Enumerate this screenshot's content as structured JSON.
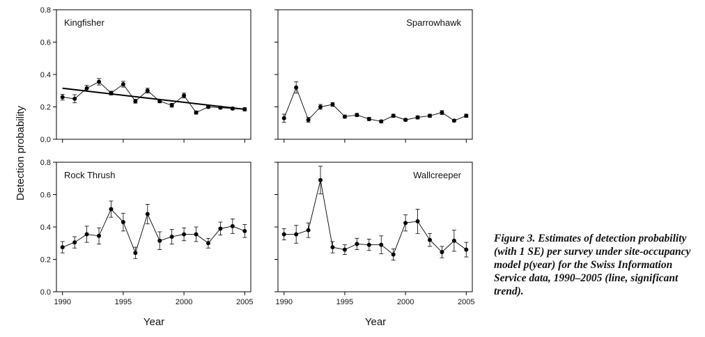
{
  "figure": {
    "caption": "Figure 3.  Estimates of detection probability (with 1 SE) per survey under site-occupancy model p(year) for the Swiss Information Service data, 1990–2005 (line, significant trend)."
  },
  "chart_data": [
    {
      "type": "line",
      "title": "Kingfisher",
      "xlabel": "",
      "ylabel": "Detection probability",
      "x": [
        1990,
        1991,
        1992,
        1993,
        1994,
        1995,
        1996,
        1997,
        1998,
        1999,
        2000,
        2001,
        2002,
        2003,
        2004,
        2005
      ],
      "values": [
        0.26,
        0.25,
        0.315,
        0.355,
        0.285,
        0.34,
        0.235,
        0.3,
        0.235,
        0.21,
        0.27,
        0.165,
        0.2,
        0.195,
        0.19,
        0.185
      ],
      "se": [
        0.018,
        0.025,
        0.018,
        0.02,
        0.012,
        0.018,
        0.012,
        0.015,
        0.01,
        0.012,
        0.015,
        0.01,
        0.008,
        0.008,
        0.008,
        0.01
      ],
      "trend": [
        [
          1990,
          0.315
        ],
        [
          2005,
          0.185
        ]
      ],
      "xlim": [
        1989.5,
        2005.5
      ],
      "ylim": [
        0,
        0.8
      ],
      "xticks": [
        "",
        "",
        "",
        "",
        ""
      ],
      "yticks": [
        "0.0",
        "0.2",
        "0.4",
        "0.6",
        "0.8"
      ],
      "title_align": "left"
    },
    {
      "type": "line",
      "title": "Sparrowhawk",
      "xlabel": "",
      "ylabel": "",
      "x": [
        1990,
        1991,
        1992,
        1993,
        1994,
        1995,
        1996,
        1997,
        1998,
        1999,
        2000,
        2001,
        2002,
        2003,
        2004,
        2005
      ],
      "values": [
        0.13,
        0.32,
        0.12,
        0.2,
        0.215,
        0.14,
        0.15,
        0.125,
        0.11,
        0.145,
        0.12,
        0.135,
        0.145,
        0.165,
        0.115,
        0.145
      ],
      "se": [
        0.025,
        0.035,
        0.015,
        0.015,
        0.012,
        0.01,
        0.01,
        0.01,
        0.008,
        0.01,
        0.008,
        0.01,
        0.01,
        0.012,
        0.008,
        0.01
      ],
      "trend": null,
      "xlim": [
        1989.5,
        2005.5
      ],
      "ylim": [
        0,
        0.8
      ],
      "xticks": [
        "",
        "",
        "",
        "",
        ""
      ],
      "yticks": [
        "",
        "",
        "",
        "",
        ""
      ],
      "title_align": "right"
    },
    {
      "type": "line",
      "title": "Rock Thrush",
      "xlabel": "Year",
      "ylabel": "",
      "x": [
        1990,
        1991,
        1992,
        1993,
        1994,
        1995,
        1996,
        1997,
        1998,
        1999,
        2000,
        2001,
        2002,
        2003,
        2004,
        2005
      ],
      "values": [
        0.275,
        0.305,
        0.355,
        0.345,
        0.51,
        0.43,
        0.24,
        0.48,
        0.315,
        0.34,
        0.355,
        0.355,
        0.3,
        0.39,
        0.405,
        0.375
      ],
      "se": [
        0.035,
        0.035,
        0.05,
        0.05,
        0.05,
        0.055,
        0.035,
        0.06,
        0.055,
        0.045,
        0.04,
        0.045,
        0.03,
        0.04,
        0.045,
        0.04
      ],
      "trend": null,
      "xlim": [
        1989.5,
        2005.5
      ],
      "ylim": [
        0,
        0.8
      ],
      "xticks": [
        "1990",
        "1995",
        "2000",
        "2005"
      ],
      "yticks": [
        "0.0",
        "0.2",
        "0.4",
        "0.6",
        "0.8"
      ],
      "title_align": "left"
    },
    {
      "type": "line",
      "title": "Wallcreeper",
      "xlabel": "Year",
      "ylabel": "",
      "x": [
        1990,
        1991,
        1992,
        1993,
        1994,
        1995,
        1996,
        1997,
        1998,
        1999,
        2000,
        2001,
        2002,
        2003,
        2004,
        2005
      ],
      "values": [
        0.355,
        0.355,
        0.38,
        0.69,
        0.275,
        0.26,
        0.295,
        0.29,
        0.29,
        0.23,
        0.425,
        0.435,
        0.32,
        0.245,
        0.315,
        0.26
      ],
      "se": [
        0.035,
        0.055,
        0.045,
        0.085,
        0.035,
        0.03,
        0.035,
        0.035,
        0.055,
        0.035,
        0.05,
        0.075,
        0.04,
        0.035,
        0.065,
        0.045
      ],
      "trend": null,
      "xlim": [
        1989.5,
        2005.5
      ],
      "ylim": [
        0,
        0.8
      ],
      "xticks": [
        "1990",
        "1995",
        "2000",
        "2005"
      ],
      "yticks": [
        "",
        "",
        "",
        "",
        ""
      ],
      "title_align": "right"
    }
  ]
}
